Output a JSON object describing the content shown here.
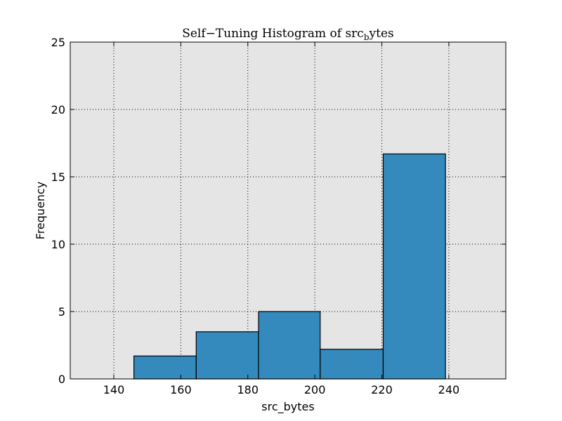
{
  "chart_data": {
    "type": "bar",
    "title_main": "Self−Tuning Histogram of src",
    "title_sub": "b",
    "title_tail": "ytes",
    "xlabel": "src_bytes",
    "ylabel": "Frequency",
    "xlim": [
      127,
      257
    ],
    "ylim": [
      0,
      25
    ],
    "xticks": [
      140,
      160,
      180,
      200,
      220,
      240
    ],
    "yticks": [
      0,
      5,
      10,
      15,
      20,
      25
    ],
    "grid": true,
    "bar_color": "#348abd",
    "background_color": "#e5e5e5",
    "bins": [
      {
        "x0": 146,
        "x1": 164.6,
        "value": 1.7
      },
      {
        "x0": 164.6,
        "x1": 183.2,
        "value": 3.5
      },
      {
        "x0": 183.2,
        "x1": 201.6,
        "value": 5.0
      },
      {
        "x0": 201.6,
        "x1": 220.4,
        "value": 2.2
      },
      {
        "x0": 220.4,
        "x1": 239,
        "value": 16.7
      }
    ]
  }
}
